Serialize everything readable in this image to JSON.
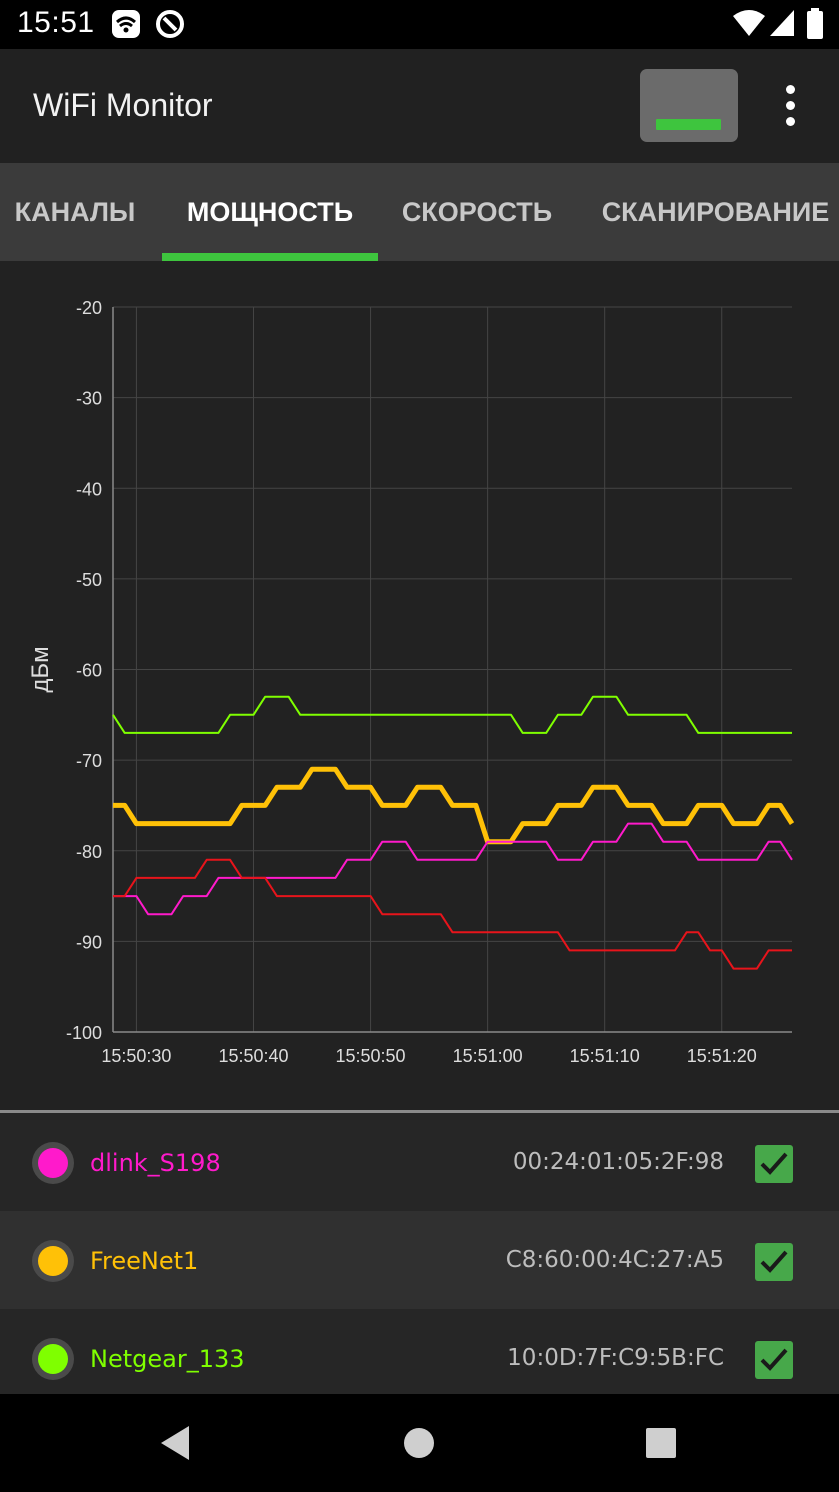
{
  "status_bar": {
    "time": "15:51"
  },
  "toolbar": {
    "title": "WiFi Monitor"
  },
  "tabs": [
    {
      "label": "КАНАЛЫ"
    },
    {
      "label": "МОЩНОСТЬ"
    },
    {
      "label": "СКОРОСТЬ"
    },
    {
      "label": "СКАНИРОВАНИЕ"
    }
  ],
  "active_tab": "МОЩНОСТЬ",
  "colors": {
    "accent": "#3ec53e",
    "grid": "#454545",
    "axis": "#8a8a8a"
  },
  "chart_data": {
    "type": "line",
    "ylabel": "дБм",
    "ylim": [
      -100,
      -20
    ],
    "yticks": [
      "-20",
      "-30",
      "-40",
      "-50",
      "-60",
      "-70",
      "-80",
      "-90",
      "-100"
    ],
    "xlim": [
      "15:50:28",
      "15:51:26"
    ],
    "xticks": [
      "15:50:30",
      "15:50:40",
      "15:50:50",
      "15:51:00",
      "15:51:10",
      "15:51:20"
    ],
    "grid": true,
    "series": [
      {
        "name": "Netgear_133",
        "color": "#7fff00",
        "width": 2,
        "points": [
          [
            "15:50:28",
            -65
          ],
          [
            "15:50:29",
            -67
          ],
          [
            "15:50:37",
            -67
          ],
          [
            "15:50:38",
            -65
          ],
          [
            "15:50:40",
            -65
          ],
          [
            "15:50:41",
            -63
          ],
          [
            "15:50:43",
            -63
          ],
          [
            "15:50:44",
            -65
          ],
          [
            "15:51:02",
            -65
          ],
          [
            "15:51:03",
            -67
          ],
          [
            "15:51:05",
            -67
          ],
          [
            "15:51:06",
            -65
          ],
          [
            "15:51:08",
            -65
          ],
          [
            "15:51:09",
            -63
          ],
          [
            "15:51:11",
            -63
          ],
          [
            "15:51:12",
            -65
          ],
          [
            "15:51:17",
            -65
          ],
          [
            "15:51:18",
            -67
          ],
          [
            "15:51:26",
            -67
          ]
        ]
      },
      {
        "name": "FreeNet1",
        "color": "#ffc107",
        "width": 5,
        "points": [
          [
            "15:50:28",
            -75
          ],
          [
            "15:50:29",
            -75
          ],
          [
            "15:50:30",
            -77
          ],
          [
            "15:50:38",
            -77
          ],
          [
            "15:50:39",
            -75
          ],
          [
            "15:50:41",
            -75
          ],
          [
            "15:50:42",
            -73
          ],
          [
            "15:50:44",
            -73
          ],
          [
            "15:50:45",
            -71
          ],
          [
            "15:50:47",
            -71
          ],
          [
            "15:50:48",
            -73
          ],
          [
            "15:50:50",
            -73
          ],
          [
            "15:50:51",
            -75
          ],
          [
            "15:50:53",
            -75
          ],
          [
            "15:50:54",
            -73
          ],
          [
            "15:50:56",
            -73
          ],
          [
            "15:50:57",
            -75
          ],
          [
            "15:50:59",
            -75
          ],
          [
            "15:51:00",
            -79
          ],
          [
            "15:51:02",
            -79
          ],
          [
            "15:51:03",
            -77
          ],
          [
            "15:51:05",
            -77
          ],
          [
            "15:51:06",
            -75
          ],
          [
            "15:51:08",
            -75
          ],
          [
            "15:51:09",
            -73
          ],
          [
            "15:51:11",
            -73
          ],
          [
            "15:51:12",
            -75
          ],
          [
            "15:51:14",
            -75
          ],
          [
            "15:51:15",
            -77
          ],
          [
            "15:51:17",
            -77
          ],
          [
            "15:51:18",
            -75
          ],
          [
            "15:51:20",
            -75
          ],
          [
            "15:51:21",
            -77
          ],
          [
            "15:51:23",
            -77
          ],
          [
            "15:51:24",
            -75
          ],
          [
            "15:51:25",
            -75
          ],
          [
            "15:51:26",
            -77
          ]
        ]
      },
      {
        "name": "dlink_S198",
        "color": "#ff1acb",
        "width": 2,
        "points": [
          [
            "15:50:28",
            -85
          ],
          [
            "15:50:30",
            -85
          ],
          [
            "15:50:31",
            -87
          ],
          [
            "15:50:33",
            -87
          ],
          [
            "15:50:34",
            -85
          ],
          [
            "15:50:36",
            -85
          ],
          [
            "15:50:37",
            -83
          ],
          [
            "15:50:47",
            -83
          ],
          [
            "15:50:48",
            -81
          ],
          [
            "15:50:50",
            -81
          ],
          [
            "15:50:51",
            -79
          ],
          [
            "15:50:53",
            -79
          ],
          [
            "15:50:54",
            -81
          ],
          [
            "15:50:59",
            -81
          ],
          [
            "15:51:00",
            -79
          ],
          [
            "15:51:05",
            -79
          ],
          [
            "15:51:06",
            -81
          ],
          [
            "15:51:08",
            -81
          ],
          [
            "15:51:09",
            -79
          ],
          [
            "15:51:11",
            -79
          ],
          [
            "15:51:12",
            -77
          ],
          [
            "15:51:14",
            -77
          ],
          [
            "15:51:15",
            -79
          ],
          [
            "15:51:17",
            -79
          ],
          [
            "15:51:18",
            -81
          ],
          [
            "15:51:23",
            -81
          ],
          [
            "15:51:24",
            -79
          ],
          [
            "15:51:25",
            -79
          ],
          [
            "15:51:26",
            -81
          ]
        ]
      },
      {
        "name": "",
        "color": "#e8141b",
        "width": 2,
        "points": [
          [
            "15:50:28",
            -85
          ],
          [
            "15:50:29",
            -85
          ],
          [
            "15:50:30",
            -83
          ],
          [
            "15:50:35",
            -83
          ],
          [
            "15:50:36",
            -81
          ],
          [
            "15:50:38",
            -81
          ],
          [
            "15:50:39",
            -83
          ],
          [
            "15:50:41",
            -83
          ],
          [
            "15:50:42",
            -85
          ],
          [
            "15:50:50",
            -85
          ],
          [
            "15:50:51",
            -87
          ],
          [
            "15:50:56",
            -87
          ],
          [
            "15:50:57",
            -89
          ],
          [
            "15:51:06",
            -89
          ],
          [
            "15:51:07",
            -91
          ],
          [
            "15:51:16",
            -91
          ],
          [
            "15:51:17",
            -89
          ],
          [
            "15:51:18",
            -89
          ],
          [
            "15:51:19",
            -91
          ],
          [
            "15:51:20",
            -91
          ],
          [
            "15:51:21",
            -93
          ],
          [
            "15:51:23",
            -93
          ],
          [
            "15:51:24",
            -91
          ],
          [
            "15:51:26",
            -91
          ]
        ]
      }
    ]
  },
  "networks": [
    {
      "ssid": "dlink_S198",
      "bssid": "00:24:01:05:2F:98",
      "color": "#ff1acb",
      "checked": true
    },
    {
      "ssid": "FreeNet1",
      "bssid": "C8:60:00:4C:27:A5",
      "color": "#ffc107",
      "checked": true
    },
    {
      "ssid": "Netgear_133",
      "bssid": "10:0D:7F:C9:5B:FC",
      "color": "#7fff00",
      "checked": true
    }
  ],
  "nav_bar": {
    "icons": [
      "back-icon",
      "home-icon",
      "recents-icon"
    ]
  }
}
